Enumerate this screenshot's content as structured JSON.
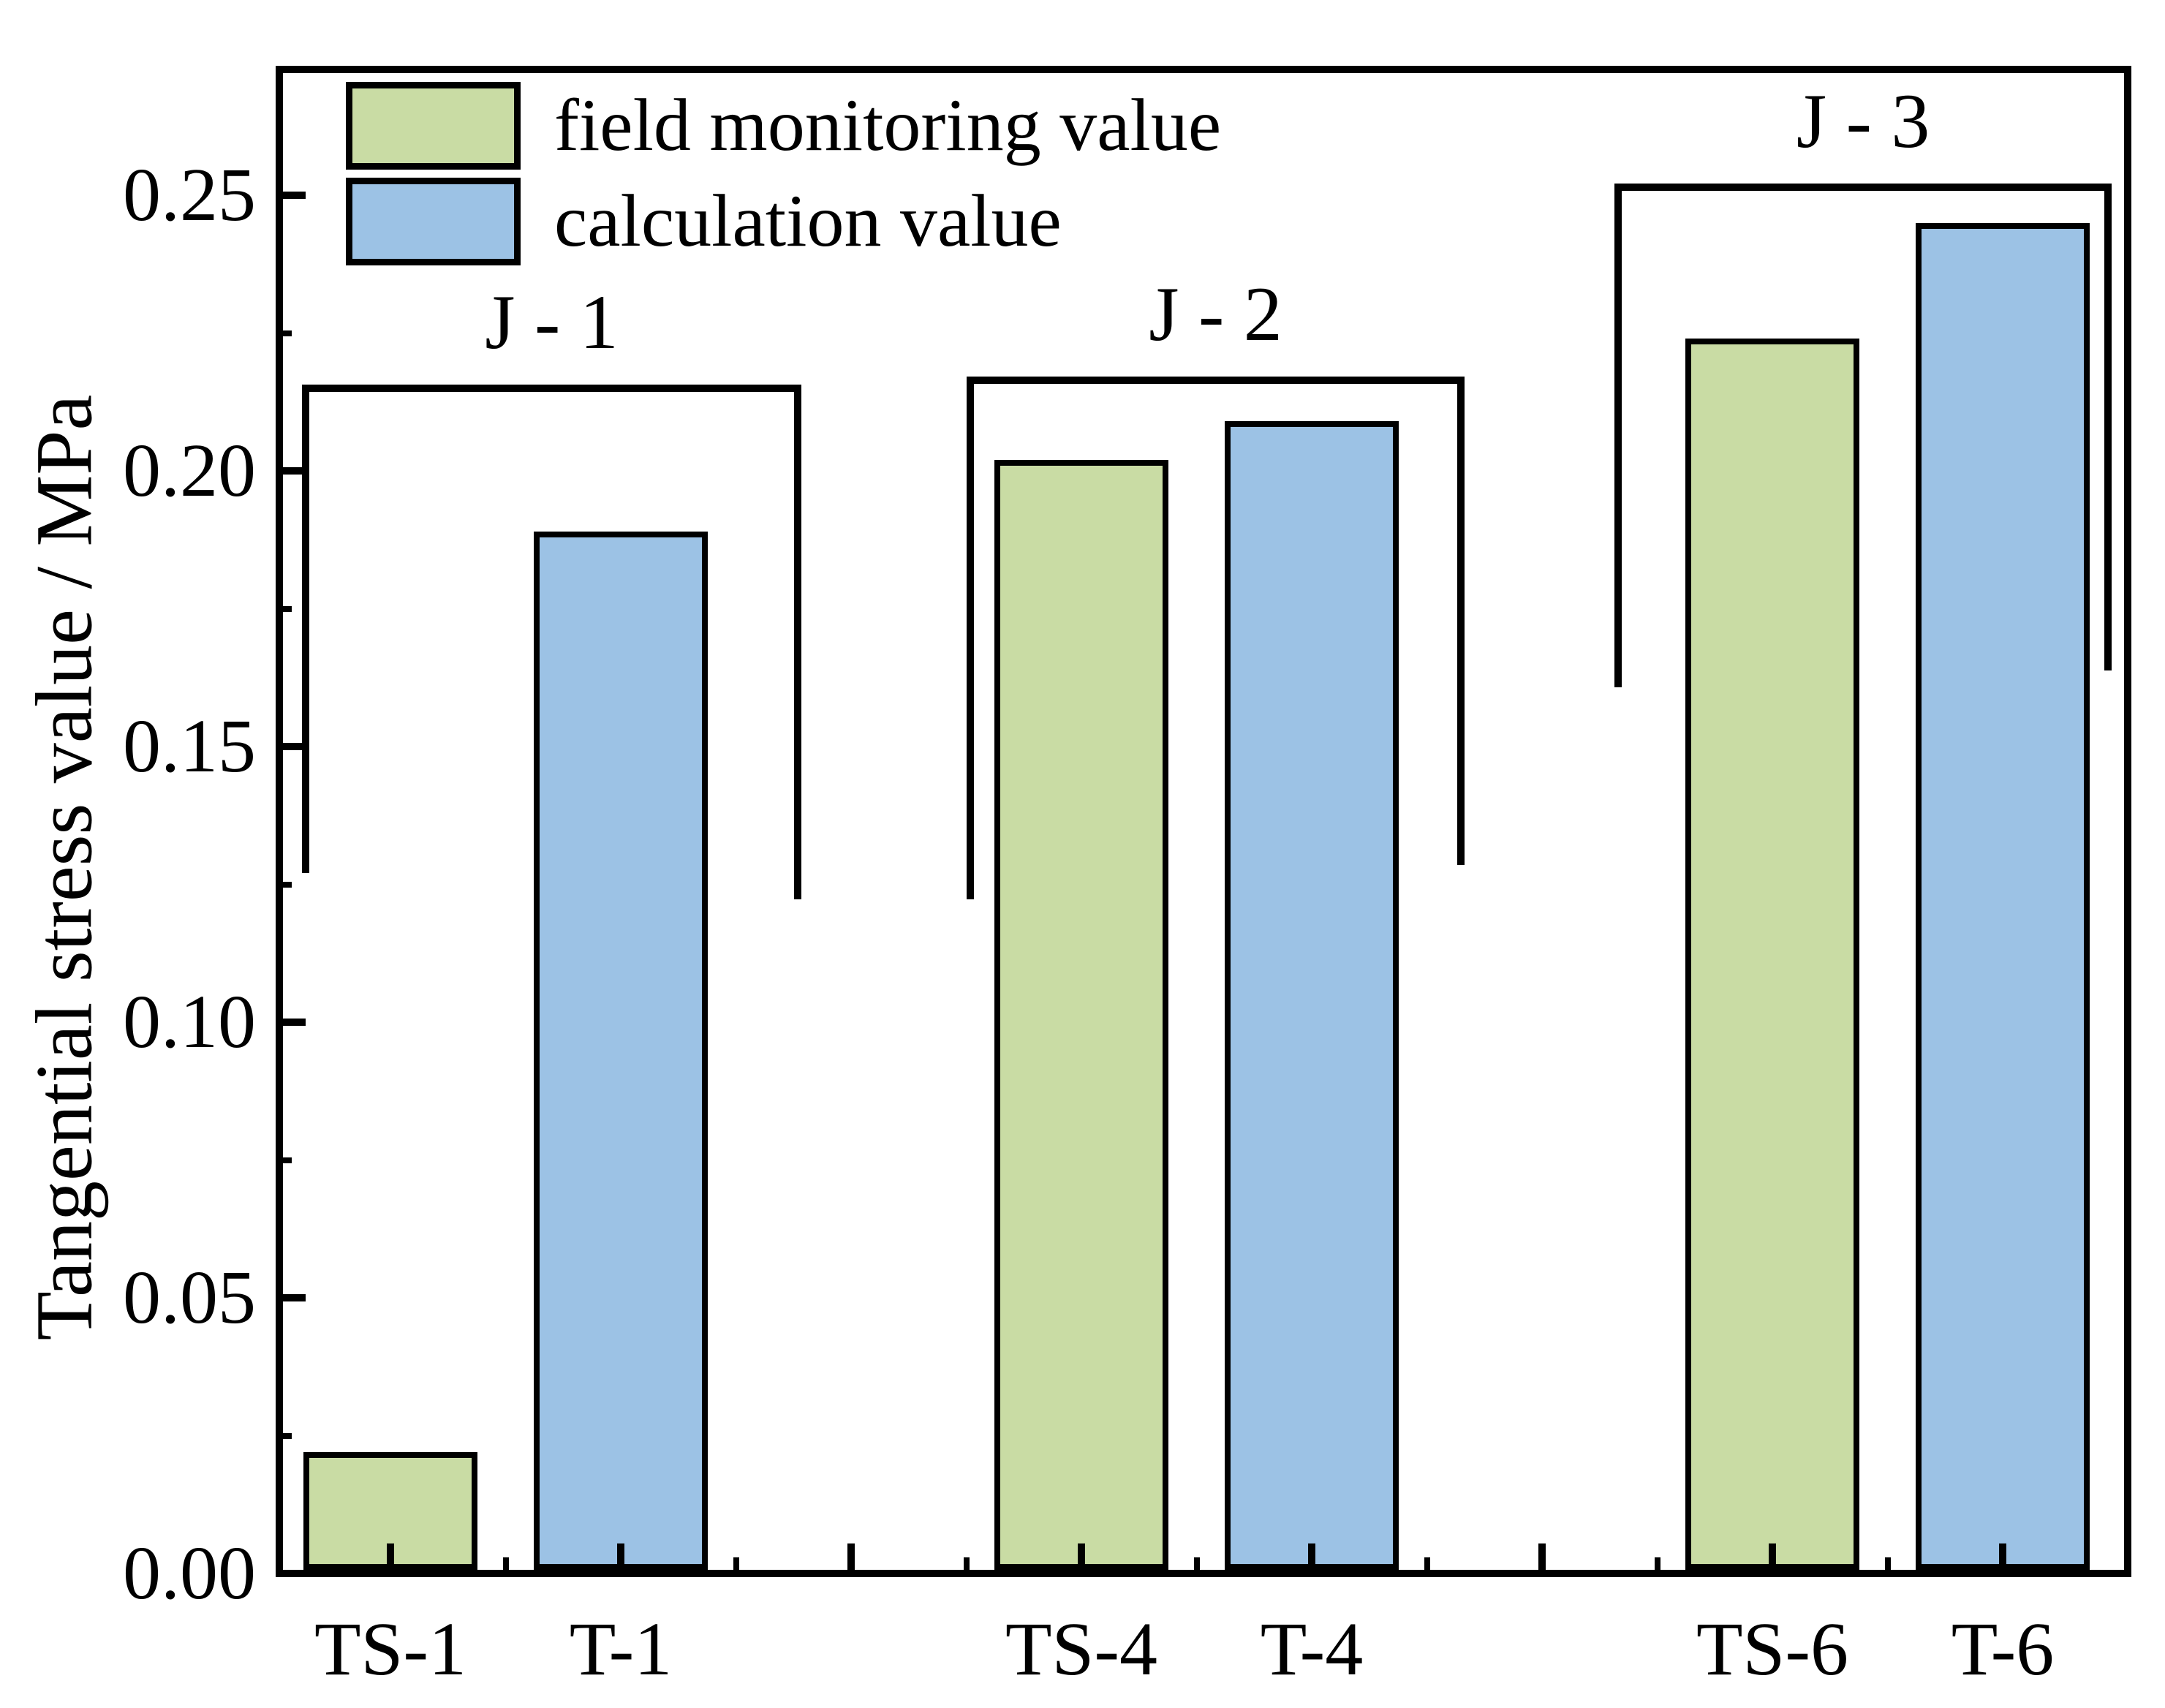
{
  "chart_data": {
    "type": "bar",
    "title": "",
    "xlabel": "",
    "ylabel": "Tangential stress value / MPa",
    "ylim": [
      0.0,
      0.274
    ],
    "grid": false,
    "legend_position": "top-left-inside",
    "y_major_ticks": [
      0.0,
      0.05,
      0.1,
      0.15,
      0.2,
      0.25
    ],
    "y_tick_labels": [
      "0.00",
      "0.05",
      "0.10",
      "0.15",
      "0.20",
      "0.25"
    ],
    "y_minor_ticks": [
      0.025,
      0.075,
      0.125,
      0.175,
      0.225
    ],
    "x_minor_slots": [
      0.5,
      1.5,
      2.5,
      3.5,
      4.5,
      5.5,
      6.5
    ],
    "x_empty_slots": [
      2,
      5
    ],
    "categories": [
      "TS-1",
      "T-1",
      "TS-4",
      "T-4",
      "TS-6",
      "T-6"
    ],
    "series": [
      {
        "name": "field monitoring value",
        "color": "#c9dca4",
        "values_by_category": {
          "TS-1": 0.022,
          "TS-4": 0.202,
          "TS-6": 0.224
        }
      },
      {
        "name": "calculation value",
        "color": "#9cc2e5",
        "values_by_category": {
          "T-1": 0.189,
          "T-4": 0.209,
          "T-6": 0.245
        }
      }
    ],
    "bars": [
      {
        "category": "TS-1",
        "slot": 0,
        "series": "field monitoring value",
        "color": "#c9dca4",
        "value": 0.022
      },
      {
        "category": "T-1",
        "slot": 1,
        "series": "calculation value",
        "color": "#9cc2e5",
        "value": 0.189
      },
      {
        "category": "TS-4",
        "slot": 3,
        "series": "field monitoring value",
        "color": "#c9dca4",
        "value": 0.202
      },
      {
        "category": "T-4",
        "slot": 4,
        "series": "calculation value",
        "color": "#9cc2e5",
        "value": 0.209
      },
      {
        "category": "TS-6",
        "slot": 6,
        "series": "field monitoring value",
        "color": "#c9dca4",
        "value": 0.224
      },
      {
        "category": "T-6",
        "slot": 7,
        "series": "calculation value",
        "color": "#9cc2e5",
        "value": 0.245
      }
    ],
    "legend": [
      {
        "label": "field monitoring value",
        "color": "#c9dca4"
      },
      {
        "label": "calculation value",
        "color": "#9cc2e5"
      }
    ],
    "annotations": [
      {
        "label": "J - 1",
        "x_from_slot": -0.384,
        "x_to_slot": 1.784,
        "y_value": 0.215,
        "drop_left_to": 0.127,
        "drop_right_to": 0.1223
      },
      {
        "label": "J - 2",
        "x_from_slot": 2.5,
        "x_to_slot": 4.665,
        "y_value": 0.2165,
        "drop_left_to": 0.1223,
        "drop_right_to": 0.1285
      },
      {
        "label": "J - 3",
        "x_from_slot": 5.315,
        "x_to_slot": 7.473,
        "y_value": 0.2515,
        "drop_left_to": 0.1607,
        "drop_right_to": 0.1638
      }
    ]
  }
}
